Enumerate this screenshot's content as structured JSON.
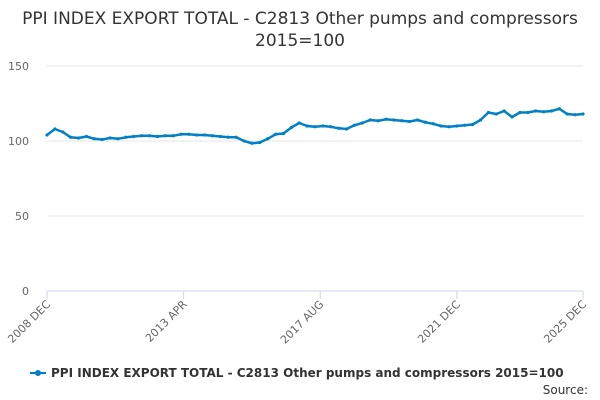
{
  "chart_data": {
    "type": "line",
    "title": "PPI INDEX EXPORT TOTAL - C2813 Other pumps and compressors 2015=100",
    "xlabel": "",
    "ylabel": "",
    "ylim": [
      0,
      150
    ],
    "yticks": [
      "0",
      "50",
      "100",
      "150"
    ],
    "xlim": [
      "2008-12",
      "2025-12"
    ],
    "xticks": [
      {
        "date": "2008-12",
        "label": "2008 DEC"
      },
      {
        "date": "2013-04",
        "label": "2013 APR"
      },
      {
        "date": "2017-08",
        "label": "2017 AUG"
      },
      {
        "date": "2021-12",
        "label": "2021 DEC"
      },
      {
        "date": "2025-12",
        "label": "2025 DEC"
      }
    ],
    "grid": "horizontal",
    "legend_position": "bottom",
    "color": "#0080c6",
    "series": [
      {
        "name": "PPI INDEX EXPORT TOTAL - C2813 Other pumps and compressors 2015=100",
        "points": [
          [
            "2008-12",
            104
          ],
          [
            "2009-03",
            108
          ],
          [
            "2009-06",
            106
          ],
          [
            "2009-09",
            102.5
          ],
          [
            "2009-12",
            102
          ],
          [
            "2010-03",
            103
          ],
          [
            "2010-06",
            101.5
          ],
          [
            "2010-09",
            101
          ],
          [
            "2010-12",
            102
          ],
          [
            "2011-03",
            101.5
          ],
          [
            "2011-06",
            102.5
          ],
          [
            "2011-09",
            103
          ],
          [
            "2011-12",
            103.5
          ],
          [
            "2012-03",
            103.5
          ],
          [
            "2012-06",
            103
          ],
          [
            "2012-09",
            103.5
          ],
          [
            "2012-12",
            103.5
          ],
          [
            "2013-03",
            104.5
          ],
          [
            "2013-06",
            104.5
          ],
          [
            "2013-09",
            104
          ],
          [
            "2013-12",
            104
          ],
          [
            "2014-03",
            103.5
          ],
          [
            "2014-06",
            103
          ],
          [
            "2014-09",
            102.5
          ],
          [
            "2014-12",
            102.5
          ],
          [
            "2015-03",
            100
          ],
          [
            "2015-06",
            98.5
          ],
          [
            "2015-09",
            99
          ],
          [
            "2015-12",
            101.5
          ],
          [
            "2016-03",
            104.5
          ],
          [
            "2016-06",
            105
          ],
          [
            "2016-09",
            109
          ],
          [
            "2016-12",
            112
          ],
          [
            "2017-03",
            110
          ],
          [
            "2017-06",
            109.5
          ],
          [
            "2017-09",
            110
          ],
          [
            "2017-12",
            109.5
          ],
          [
            "2018-03",
            108.5
          ],
          [
            "2018-06",
            108
          ],
          [
            "2018-09",
            110.5
          ],
          [
            "2018-12",
            112
          ],
          [
            "2019-03",
            114
          ],
          [
            "2019-06",
            113.5
          ],
          [
            "2019-09",
            114.5
          ],
          [
            "2019-12",
            114
          ],
          [
            "2020-03",
            113.5
          ],
          [
            "2020-06",
            113
          ],
          [
            "2020-09",
            114
          ],
          [
            "2020-12",
            112.5
          ],
          [
            "2021-03",
            111.5
          ],
          [
            "2021-06",
            110
          ],
          [
            "2021-09",
            109.5
          ],
          [
            "2021-12",
            110
          ],
          [
            "2022-03",
            110.5
          ],
          [
            "2022-06",
            111
          ],
          [
            "2022-09",
            114
          ],
          [
            "2022-12",
            119
          ],
          [
            "2023-03",
            118
          ],
          [
            "2023-06",
            120
          ],
          [
            "2023-09",
            116
          ],
          [
            "2023-12",
            119
          ],
          [
            "2024-03",
            119
          ],
          [
            "2024-06",
            120
          ],
          [
            "2024-09",
            119.5
          ],
          [
            "2024-12",
            120
          ],
          [
            "2025-03",
            121.5
          ],
          [
            "2025-06",
            118
          ],
          [
            "2025-09",
            117.5
          ],
          [
            "2025-12",
            118
          ]
        ]
      }
    ]
  },
  "source_label": "Source:"
}
